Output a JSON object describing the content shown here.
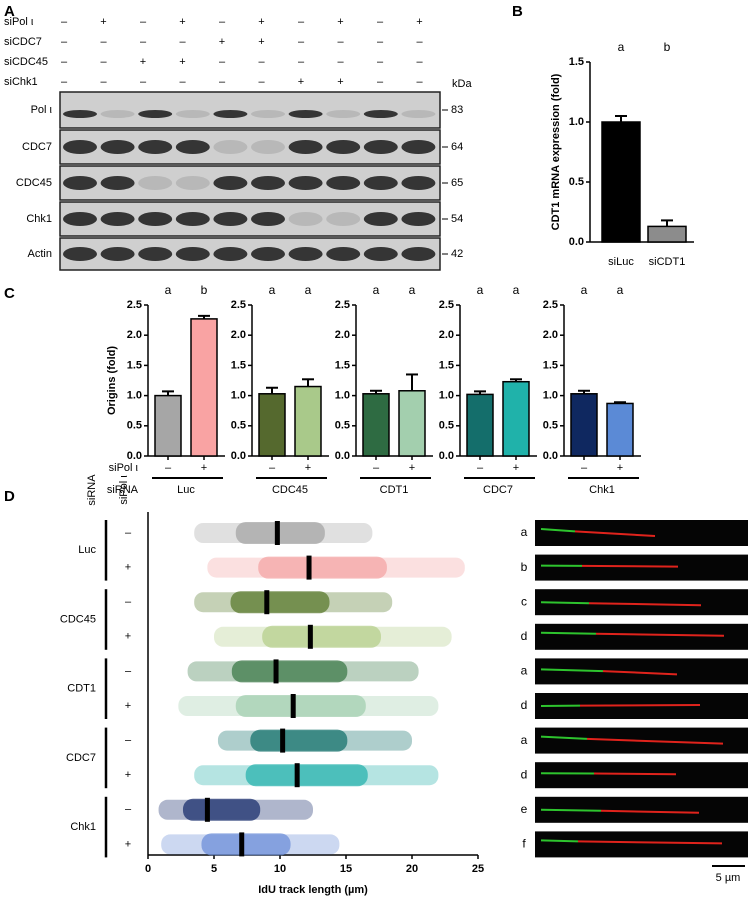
{
  "panel_labels": [
    "A",
    "B",
    "C",
    "D"
  ],
  "blot": {
    "treatments": [
      {
        "name": "siPol ι",
        "signs": [
          "–",
          "+",
          "–",
          "+",
          "–",
          "+",
          "–",
          "+",
          "–",
          "+"
        ]
      },
      {
        "name": "siCDC7",
        "signs": [
          "–",
          "–",
          "–",
          "–",
          "+",
          "+",
          "–",
          "–",
          "–",
          "–"
        ]
      },
      {
        "name": "siCDC45",
        "signs": [
          "–",
          "–",
          "+",
          "+",
          "–",
          "–",
          "–",
          "–",
          "–",
          "–"
        ]
      },
      {
        "name": "siChk1",
        "signs": [
          "–",
          "–",
          "–",
          "–",
          "–",
          "–",
          "+",
          "+",
          "–",
          "–"
        ]
      }
    ],
    "unit": "kDa",
    "rows": [
      {
        "name": "Pol ι",
        "kda": 83
      },
      {
        "name": "CDC7",
        "kda": 64
      },
      {
        "name": "CDC45",
        "kda": 65
      },
      {
        "name": "Chk1",
        "kda": 54
      },
      {
        "name": "Actin",
        "kda": 42
      }
    ]
  },
  "panel_c_labels": {
    "treatment": "siPol ι",
    "sirna": "siRNA"
  },
  "panel_d_labels": {
    "sirna": "siRNA",
    "treatment": "siPol ι",
    "scale_bar": "5 µm"
  },
  "chart_data": [
    {
      "type": "bar",
      "y_label": "CDT1 mRNA expression (fold)",
      "categories": [
        "siLuc",
        "siCDT1"
      ],
      "values": [
        1.0,
        0.13
      ],
      "errors": [
        0.05,
        0.05
      ],
      "annotations": [
        "a",
        "b"
      ],
      "colors": [
        "#000000",
        "#8c8c8c"
      ],
      "ylim": [
        0,
        1.5
      ],
      "yticks": [
        {
          "value": 0,
          "label": "0.0"
        },
        {
          "value": 0.5,
          "label": "0.5"
        },
        {
          "value": 1,
          "label": "1.0"
        },
        {
          "value": 1.5,
          "label": "1.5"
        }
      ]
    },
    {
      "type": "bar",
      "title": "Luc",
      "y_label": "Origins (fold)",
      "categories": [
        "–",
        "+"
      ],
      "values": [
        1.0,
        2.27
      ],
      "errors": [
        0.07,
        0.05
      ],
      "annotations": [
        "a",
        "b"
      ],
      "colors": [
        "#a6a6a6",
        "#f9a3a3"
      ],
      "ylim": [
        0,
        2.5
      ],
      "yticks": [
        {
          "value": 0,
          "label": "0.0"
        },
        {
          "value": 0.5,
          "label": "0.5"
        },
        {
          "value": 1,
          "label": "1.0"
        },
        {
          "value": 1.5,
          "label": "1.5"
        },
        {
          "value": 2,
          "label": "2.0"
        },
        {
          "value": 2.5,
          "label": "2.5"
        }
      ]
    },
    {
      "type": "bar",
      "title": "CDC45",
      "categories": [
        "–",
        "+"
      ],
      "values": [
        1.03,
        1.15
      ],
      "errors": [
        0.1,
        0.12
      ],
      "annotations": [
        "a",
        "a"
      ],
      "colors": [
        "#55692e",
        "#a9c98a"
      ],
      "ylim": [
        0,
        2.5
      ],
      "yticks": [
        {
          "value": 0,
          "label": "0.0"
        },
        {
          "value": 0.5,
          "label": "0.5"
        },
        {
          "value": 1,
          "label": "1.0"
        },
        {
          "value": 1.5,
          "label": "1.5"
        },
        {
          "value": 2,
          "label": "2.0"
        },
        {
          "value": 2.5,
          "label": "2.5"
        }
      ]
    },
    {
      "type": "bar",
      "title": "CDT1",
      "categories": [
        "–",
        "+"
      ],
      "values": [
        1.03,
        1.08
      ],
      "errors": [
        0.05,
        0.27
      ],
      "annotations": [
        "a",
        "a"
      ],
      "colors": [
        "#2e6b42",
        "#a3cfae"
      ],
      "ylim": [
        0,
        2.5
      ],
      "yticks": [
        {
          "value": 0,
          "label": "0.0"
        },
        {
          "value": 0.5,
          "label": "0.5"
        },
        {
          "value": 1,
          "label": "1.0"
        },
        {
          "value": 1.5,
          "label": "1.5"
        },
        {
          "value": 2,
          "label": "2.0"
        },
        {
          "value": 2.5,
          "label": "2.5"
        }
      ]
    },
    {
      "type": "bar",
      "title": "CDC7",
      "categories": [
        "–",
        "+"
      ],
      "values": [
        1.02,
        1.23
      ],
      "errors": [
        0.05,
        0.04
      ],
      "annotations": [
        "a",
        "a"
      ],
      "colors": [
        "#146e6b",
        "#20b2aa"
      ],
      "ylim": [
        0,
        2.5
      ],
      "yticks": [
        {
          "value": 0,
          "label": "0.0"
        },
        {
          "value": 0.5,
          "label": "0.5"
        },
        {
          "value": 1,
          "label": "1.0"
        },
        {
          "value": 1.5,
          "label": "1.5"
        },
        {
          "value": 2,
          "label": "2.0"
        },
        {
          "value": 2.5,
          "label": "2.5"
        }
      ]
    },
    {
      "type": "bar",
      "title": "Chk1",
      "categories": [
        "–",
        "+"
      ],
      "values": [
        1.03,
        0.87
      ],
      "errors": [
        0.05,
        0.02
      ],
      "annotations": [
        "a",
        "a"
      ],
      "colors": [
        "#0f2860",
        "#5b8ad6"
      ],
      "ylim": [
        0,
        2.5
      ],
      "yticks": [
        {
          "value": 0,
          "label": "0.0"
        },
        {
          "value": 0.5,
          "label": "0.5"
        },
        {
          "value": 1,
          "label": "1.0"
        },
        {
          "value": 1.5,
          "label": "1.5"
        },
        {
          "value": 2,
          "label": "2.0"
        },
        {
          "value": 2.5,
          "label": "2.5"
        }
      ]
    },
    {
      "type": "swarm",
      "x_label": "IdU track length (µm)",
      "xlim": [
        0,
        25
      ],
      "xticks": [
        0,
        5,
        10,
        15,
        20,
        25
      ],
      "groups": [
        "Luc",
        "CDC45",
        "CDT1",
        "CDC7",
        "Chk1"
      ],
      "rows": [
        {
          "sign": "–",
          "color": "#a6a6a6",
          "min": 3.5,
          "median": 9.8,
          "max": 17,
          "annotation": "a"
        },
        {
          "sign": "+",
          "color": "#f4a6a6",
          "min": 4.5,
          "median": 12.2,
          "max": 24,
          "annotation": "b"
        },
        {
          "sign": "–",
          "color": "#5a7a2e",
          "min": 3.5,
          "median": 9.0,
          "max": 18.5,
          "annotation": "c"
        },
        {
          "sign": "+",
          "color": "#b5cf8c",
          "min": 5,
          "median": 12.3,
          "max": 23,
          "annotation": "d"
        },
        {
          "sign": "–",
          "color": "#3d7a4a",
          "min": 3,
          "median": 9.7,
          "max": 20.5,
          "annotation": "a"
        },
        {
          "sign": "+",
          "color": "#a3cfb0",
          "min": 2.3,
          "median": 11.0,
          "max": 22,
          "annotation": "d"
        },
        {
          "sign": "–",
          "color": "#17736e",
          "min": 5.3,
          "median": 10.2,
          "max": 20,
          "annotation": "a"
        },
        {
          "sign": "+",
          "color": "#2ab3ad",
          "min": 3.5,
          "median": 11.3,
          "max": 22,
          "annotation": "d"
        },
        {
          "sign": "–",
          "color": "#1b2f6e",
          "min": 0.8,
          "median": 4.5,
          "max": 12.5,
          "annotation": "e"
        },
        {
          "sign": "+",
          "color": "#6d8fd8",
          "min": 1,
          "median": 7.1,
          "max": 14.5,
          "annotation": "f"
        }
      ]
    }
  ]
}
